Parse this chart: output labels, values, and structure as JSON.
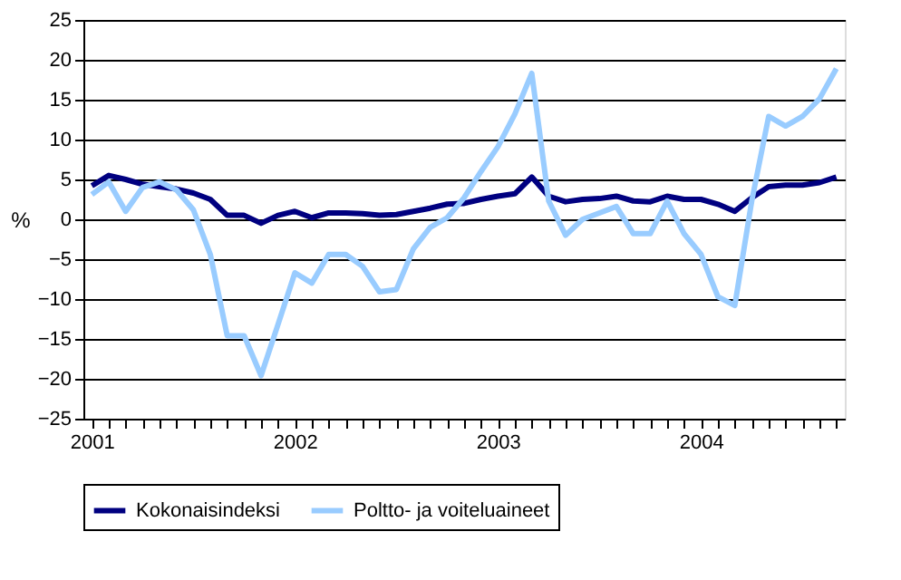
{
  "chart_data": {
    "type": "line",
    "ylabel": "%",
    "categories": [
      "2001",
      null,
      null,
      null,
      null,
      null,
      null,
      null,
      null,
      null,
      null,
      null,
      "2002",
      null,
      null,
      null,
      null,
      null,
      null,
      null,
      null,
      null,
      null,
      null,
      "2003",
      null,
      null,
      null,
      null,
      null,
      null,
      null,
      null,
      null,
      null,
      null,
      "2004",
      null,
      null,
      null,
      null,
      null,
      null,
      null,
      null
    ],
    "series": [
      {
        "name": "Kokonaisindeksi",
        "color": "#000080",
        "values": [
          4.2,
          5.5,
          5,
          4.4,
          4.1,
          3.8,
          3.3,
          2.5,
          0.5,
          0.5,
          -0.5,
          0.5,
          1,
          0.2,
          0.8,
          0.8,
          0.7,
          0.5,
          0.6,
          1,
          1.4,
          1.9,
          2,
          2.5,
          2.9,
          3.2,
          5.3,
          2.9,
          2.2,
          2.5,
          2.6,
          2.9,
          2.3,
          2.2,
          2.9,
          2.5,
          2.5,
          1.9,
          1,
          2.7,
          4.1,
          4.3,
          4.3,
          4.6,
          5.3
        ]
      },
      {
        "name": "Poltto- ja voiteluaineet",
        "color": "#99ccff",
        "values": [
          3.1,
          4.7,
          1,
          4,
          4.7,
          3.7,
          1.2,
          -4.4,
          -14.6,
          -14.6,
          -19.6,
          -13.2,
          -6.7,
          -8,
          -4.4,
          -4.4,
          -5.9,
          -9.1,
          -8.8,
          -3.7,
          -1,
          0.2,
          2.7,
          6,
          9.1,
          13.2,
          18.3,
          2.3,
          -2,
          0,
          0.8,
          1.6,
          -1.8,
          -1.8,
          2.3,
          -1.8,
          -4.4,
          -9.7,
          -10.8,
          2.3,
          12.9,
          11.7,
          12.9,
          15.1,
          18.9
        ]
      }
    ],
    "ylim": [
      -25,
      25
    ],
    "yticks": [
      -25,
      -20,
      -15,
      -10,
      -5,
      0,
      5,
      10,
      15,
      20,
      25
    ],
    "grid": "y",
    "legend": "bottom",
    "marker": "none",
    "line_style": "solid"
  }
}
